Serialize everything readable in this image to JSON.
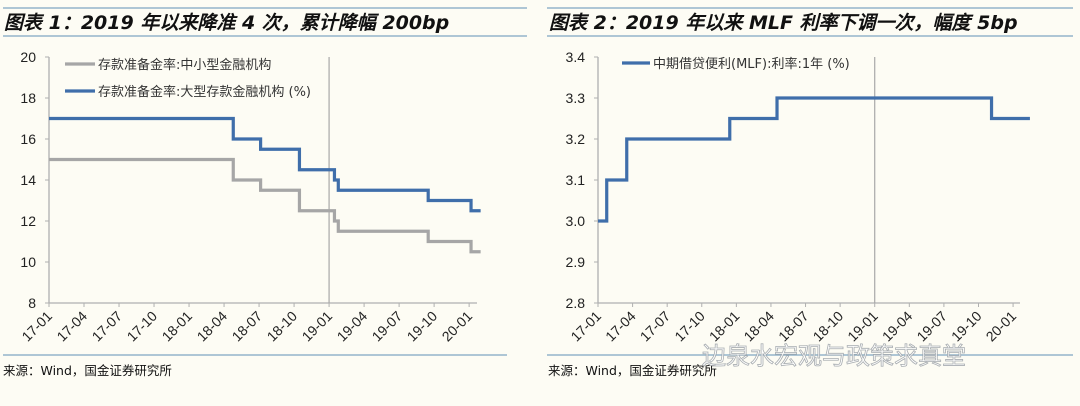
{
  "chart_data": [
    {
      "type": "line",
      "title": "图表 1：2019 年以来降准 4 次，累计降幅 200bp",
      "source": "来源：Wind，国金证券研究所",
      "step": true,
      "ylim": [
        8,
        20
      ],
      "yticks": [
        "20",
        "18",
        "16",
        "14",
        "12",
        "10",
        "8"
      ],
      "ytick_values": [
        20,
        18,
        16,
        14,
        12,
        10,
        8
      ],
      "xticks": [
        "17-01",
        "17-04",
        "17-07",
        "17-10",
        "18-01",
        "18-04",
        "18-07",
        "18-10",
        "19-01",
        "19-04",
        "19-07",
        "19-10",
        "20-01"
      ],
      "xlim": [
        "2017-01-01",
        "2020-01-01"
      ],
      "reference_line_x": "2019-01-01",
      "grid": false,
      "legend": "top-left",
      "series": [
        {
          "name": "存款准备金率:中小型金融机构",
          "color": "#a6a6a6",
          "points": [
            [
              "2017-01-01",
              15
            ],
            [
              "2018-04-25",
              14
            ],
            [
              "2018-07-05",
              13.5
            ],
            [
              "2018-10-15",
              12.5
            ],
            [
              "2019-01-15",
              12
            ],
            [
              "2019-01-25",
              11.5
            ],
            [
              "2019-09-16",
              11
            ],
            [
              "2020-01-06",
              10.5
            ],
            [
              "2020-01-31",
              10.5
            ]
          ]
        },
        {
          "name": "存款准备金率:大型存款金融机构 (%)",
          "color": "#3f6eaa",
          "points": [
            [
              "2017-01-01",
              17
            ],
            [
              "2018-04-25",
              16
            ],
            [
              "2018-07-05",
              15.5
            ],
            [
              "2018-10-15",
              14.5
            ],
            [
              "2019-01-15",
              14
            ],
            [
              "2019-01-25",
              13.5
            ],
            [
              "2019-09-16",
              13
            ],
            [
              "2020-01-06",
              12.5
            ],
            [
              "2020-01-31",
              12.5
            ]
          ]
        }
      ]
    },
    {
      "type": "line",
      "title": "图表 2：2019 年以来 MLF 利率下调一次，幅度 5bp",
      "source": "来源：Wind，国金证券研究所",
      "step": true,
      "ylim": [
        2.8,
        3.4
      ],
      "yticks": [
        "3.4",
        "3.3",
        "3.2",
        "3.1",
        "3.0",
        "2.9",
        "2.8"
      ],
      "ytick_values": [
        3.4,
        3.3,
        3.2,
        3.1,
        3.0,
        2.9,
        2.8
      ],
      "xticks": [
        "17-01",
        "17-04",
        "17-07",
        "17-10",
        "18-01",
        "18-04",
        "18-07",
        "18-10",
        "19-01",
        "19-04",
        "19-07",
        "19-10",
        "20-01"
      ],
      "xlim": [
        "2017-01-01",
        "2020-01-01"
      ],
      "reference_line_x": "2019-01-01",
      "grid": false,
      "legend": "top-left",
      "series": [
        {
          "name": "中期借贷便利(MLF):利率:1年 (%)",
          "color": "#3f6eaa",
          "points": [
            [
              "2017-01-01",
              3.0
            ],
            [
              "2017-01-24",
              3.1
            ],
            [
              "2017-03-16",
              3.2
            ],
            [
              "2017-12-14",
              3.25
            ],
            [
              "2018-04-17",
              3.3
            ],
            [
              "2019-11-05",
              3.25
            ],
            [
              "2020-02-15",
              3.25
            ]
          ]
        }
      ]
    }
  ],
  "watermark": "边泉水宏观与政策求真堂",
  "colors": {
    "background": "#fdfcf4",
    "rule": "#7fa6c2",
    "axis": "#b0b0b0"
  }
}
